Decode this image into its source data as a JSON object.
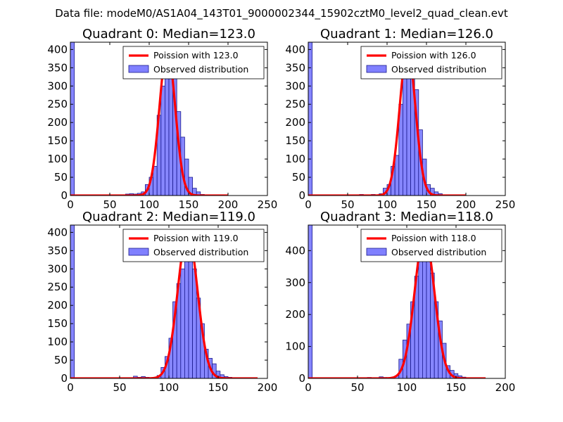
{
  "figure": {
    "suptitle": "Data file: modeM0/AS1A04_143T01_9000002344_15902cztM0_level2_quad_clean.evt"
  },
  "colors": {
    "bar_fill": "#8080ff",
    "bar_edge": "#1a1a8c",
    "curve": "#ff0000",
    "axis": "#000000"
  },
  "chart_data": [
    {
      "type": "bar",
      "title": "Quadrant 0: Median=123.0",
      "legend": {
        "curve_label": "Poission with 123.0",
        "bars_label": "Observed distribution",
        "placement": "top-right"
      },
      "median": 123.0,
      "curve_peak": 400,
      "sigma": 10,
      "xlim": [
        0,
        250
      ],
      "ylim": [
        0,
        420
      ],
      "xticks": [
        0,
        50,
        100,
        150,
        200,
        250
      ],
      "yticks": [
        0,
        50,
        100,
        150,
        200,
        250,
        300,
        350,
        400
      ],
      "curve_range": [
        0,
        200
      ],
      "bin_width": 5,
      "bins": [
        [
          0,
          420
        ],
        [
          65,
          2
        ],
        [
          70,
          4
        ],
        [
          75,
          5
        ],
        [
          80,
          4
        ],
        [
          85,
          6
        ],
        [
          90,
          10
        ],
        [
          95,
          30
        ],
        [
          100,
          50
        ],
        [
          105,
          80
        ],
        [
          110,
          220
        ],
        [
          115,
          300
        ],
        [
          120,
          330
        ],
        [
          125,
          320
        ],
        [
          130,
          320
        ],
        [
          135,
          230
        ],
        [
          140,
          160
        ],
        [
          145,
          100
        ],
        [
          150,
          50
        ],
        [
          155,
          20
        ],
        [
          160,
          10
        ],
        [
          165,
          3
        ]
      ]
    },
    {
      "type": "bar",
      "title": "Quadrant 1: Median=126.0",
      "legend": {
        "curve_label": "Poission with 126.0",
        "bars_label": "Observed distribution",
        "placement": "top-right"
      },
      "median": 126.0,
      "curve_peak": 400,
      "sigma": 10,
      "xlim": [
        0,
        250
      ],
      "ylim": [
        0,
        420
      ],
      "xticks": [
        0,
        50,
        100,
        150,
        200,
        250
      ],
      "yticks": [
        0,
        50,
        100,
        150,
        200,
        250,
        300,
        350,
        400
      ],
      "curve_range": [
        0,
        200
      ],
      "bin_width": 5,
      "bins": [
        [
          0,
          420
        ],
        [
          65,
          3
        ],
        [
          80,
          3
        ],
        [
          90,
          5
        ],
        [
          95,
          20
        ],
        [
          100,
          30
        ],
        [
          105,
          80
        ],
        [
          110,
          110
        ],
        [
          115,
          250
        ],
        [
          120,
          320
        ],
        [
          125,
          360
        ],
        [
          130,
          350
        ],
        [
          135,
          290
        ],
        [
          140,
          180
        ],
        [
          145,
          100
        ],
        [
          150,
          30
        ],
        [
          155,
          20
        ],
        [
          160,
          10
        ],
        [
          165,
          5
        ]
      ]
    },
    {
      "type": "bar",
      "title": "Quadrant 2: Median=119.0",
      "legend": {
        "curve_label": "Poission with 119.0",
        "bars_label": "Observed distribution",
        "placement": "top-right"
      },
      "median": 119.0,
      "curve_peak": 400,
      "sigma": 10,
      "xlim": [
        0,
        200
      ],
      "ylim": [
        0,
        420
      ],
      "xticks": [
        0,
        50,
        100,
        150,
        200
      ],
      "yticks": [
        0,
        50,
        100,
        150,
        200,
        250,
        300,
        350,
        400
      ],
      "curve_range": [
        0,
        190
      ],
      "bin_width": 4,
      "bins": [
        [
          0,
          420
        ],
        [
          60,
          2
        ],
        [
          64,
          6
        ],
        [
          68,
          3
        ],
        [
          72,
          5
        ],
        [
          76,
          3
        ],
        [
          84,
          3
        ],
        [
          88,
          8
        ],
        [
          92,
          30
        ],
        [
          96,
          60
        ],
        [
          100,
          110
        ],
        [
          104,
          210
        ],
        [
          108,
          260
        ],
        [
          112,
          300
        ],
        [
          116,
          360
        ],
        [
          120,
          330
        ],
        [
          124,
          300
        ],
        [
          128,
          220
        ],
        [
          132,
          150
        ],
        [
          136,
          80
        ],
        [
          140,
          55
        ],
        [
          144,
          40
        ],
        [
          148,
          20
        ],
        [
          152,
          10
        ],
        [
          156,
          5
        ],
        [
          160,
          3
        ]
      ]
    },
    {
      "type": "bar",
      "title": "Quadrant 3: Median=118.0",
      "legend": {
        "curve_label": "Poission with 118.0",
        "bars_label": "Observed distribution",
        "placement": "top-right"
      },
      "median": 118.0,
      "curve_peak": 450,
      "sigma": 10,
      "xlim": [
        0,
        200
      ],
      "ylim": [
        0,
        480
      ],
      "xticks": [
        0,
        50,
        100,
        150,
        200
      ],
      "yticks": [
        0,
        100,
        200,
        300,
        400
      ],
      "curve_range": [
        0,
        180
      ],
      "bin_width": 4,
      "bins": [
        [
          0,
          480
        ],
        [
          60,
          3
        ],
        [
          72,
          5
        ],
        [
          76,
          3
        ],
        [
          84,
          3
        ],
        [
          88,
          8
        ],
        [
          92,
          60
        ],
        [
          96,
          120
        ],
        [
          100,
          170
        ],
        [
          104,
          240
        ],
        [
          108,
          320
        ],
        [
          112,
          400
        ],
        [
          116,
          440
        ],
        [
          120,
          400
        ],
        [
          124,
          330
        ],
        [
          128,
          240
        ],
        [
          132,
          180
        ],
        [
          136,
          110
        ],
        [
          140,
          40
        ],
        [
          144,
          25
        ],
        [
          148,
          15
        ],
        [
          152,
          8
        ],
        [
          156,
          4
        ],
        [
          160,
          2
        ]
      ]
    }
  ]
}
